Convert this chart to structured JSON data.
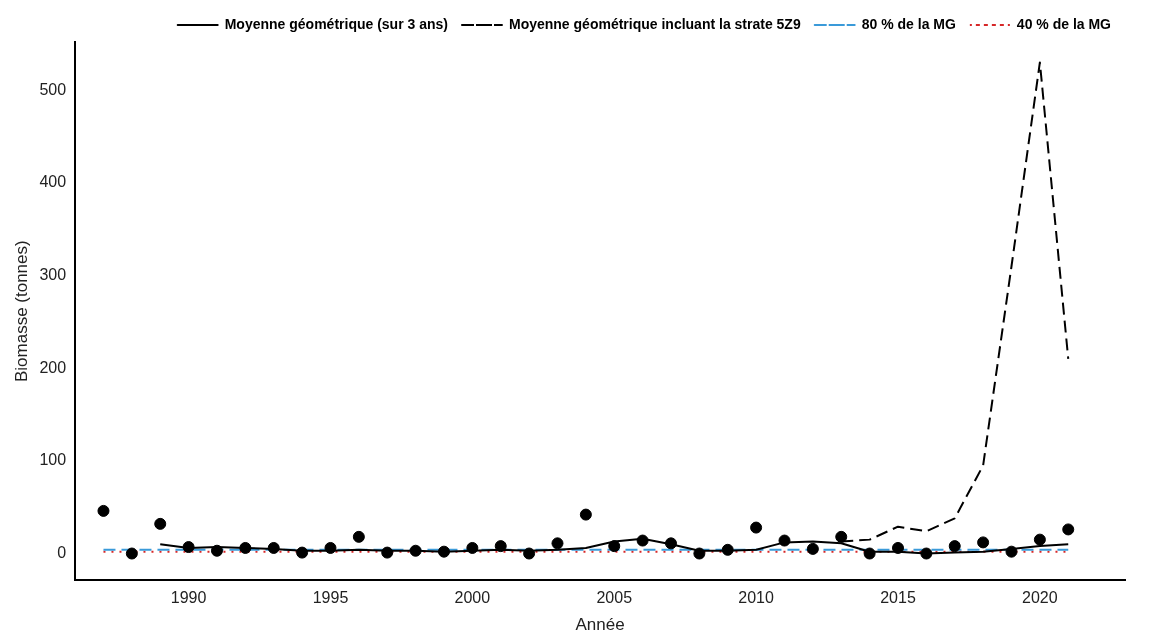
{
  "chart_data": {
    "type": "line",
    "xlabel": "Année",
    "ylabel": "Biomasse (tonnes)",
    "xlim": [
      1986,
      2023
    ],
    "xticks": [
      1990,
      1995,
      2000,
      2005,
      2010,
      2015,
      2020
    ],
    "ylim": [
      -29,
      552
    ],
    "yticks": [
      0,
      100,
      200,
      300,
      400,
      500
    ],
    "grid": false,
    "legend": "top right",
    "series": [
      {
        "type": "scatter",
        "marker": "circle",
        "color": "#000000",
        "x": [
          1987,
          1988,
          1989,
          1990,
          1991,
          1992,
          1993,
          1994,
          1995,
          1996,
          1997,
          1998,
          1999,
          2000,
          2001,
          2002,
          2003,
          2004,
          2005,
          2006,
          2007,
          2008,
          2009,
          2010,
          2011,
          2012,
          2013,
          2014,
          2015,
          2016,
          2017,
          2018,
          2019,
          2020,
          2021
        ],
        "values": [
          46,
          0,
          32,
          7,
          3,
          6,
          6,
          1,
          6,
          18,
          1,
          3,
          2,
          6,
          8,
          0,
          11,
          42,
          8,
          14,
          11,
          0,
          4,
          28,
          14,
          5,
          18,
          0,
          6,
          0,
          8,
          12,
          2,
          15,
          26
        ]
      },
      {
        "name": "Moyenne géométrique (sur 3 ans)",
        "color": "#000000",
        "line_style": "solid",
        "x": [
          1989,
          1990,
          1991,
          1992,
          1993,
          1994,
          1995,
          1996,
          1997,
          1998,
          1999,
          2000,
          2001,
          2002,
          2003,
          2004,
          2005,
          2006,
          2007,
          2008,
          2009,
          2010,
          2011,
          2012,
          2013,
          2014,
          2015,
          2016,
          2017,
          2018,
          2019,
          2020,
          2021
        ],
        "values": [
          10,
          6,
          7,
          6,
          5,
          3,
          3,
          4,
          3,
          3,
          2,
          3,
          4,
          3,
          4,
          6,
          13,
          16,
          10,
          3,
          3,
          4,
          12,
          13,
          11,
          2,
          2,
          0,
          1,
          2,
          5,
          8,
          10
        ]
      },
      {
        "name": "Moyenne géométrique incluant la strate 5Z9",
        "color": "#000000",
        "line_style": "dashed",
        "x": [
          2013,
          2014,
          2015,
          2016,
          2017,
          2018,
          2019,
          2020,
          2021
        ],
        "values": [
          13,
          15,
          29,
          24,
          38,
          95,
          310,
          530,
          210
        ]
      },
      {
        "name": "80 % de la MG",
        "color": "#3a9ad9",
        "line_style": "dashed",
        "x": [
          1987,
          2021
        ],
        "values": [
          4,
          4
        ]
      },
      {
        "name": "40 % de la MG",
        "color": "#d62728",
        "line_style": "dotted",
        "x": [
          1987,
          2021
        ],
        "values": [
          2,
          2
        ]
      }
    ]
  }
}
